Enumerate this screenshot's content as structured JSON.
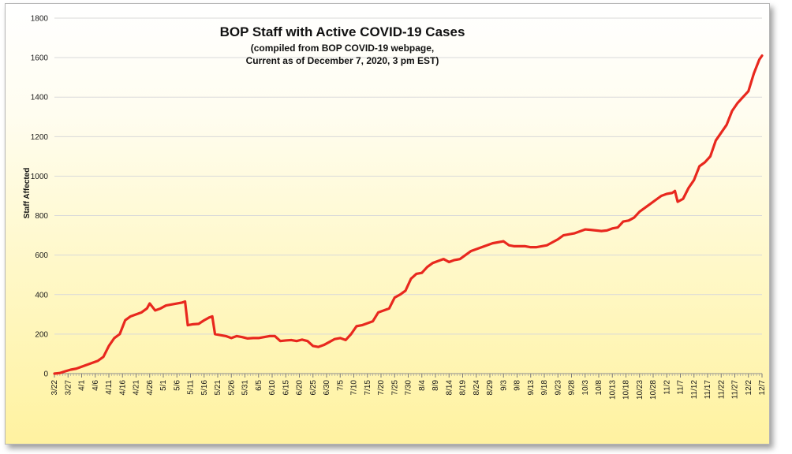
{
  "chart_data": {
    "type": "line",
    "title": "BOP Staff with Active COVID-19 Cases",
    "subtitle_lines": [
      "(compiled from BOP COVID-19 webpage,",
      "Current as of December 7, 2020, 3 pm EST)"
    ],
    "xlabel": "",
    "ylabel": "Staff Affected",
    "ylim": [
      0,
      1800
    ],
    "yticks": [
      0,
      200,
      400,
      600,
      800,
      1000,
      1200,
      1400,
      1600,
      1800
    ],
    "xlim": [
      "3/22",
      "12/7"
    ],
    "xticks": [
      "3/22",
      "3/27",
      "4/1",
      "4/6",
      "4/11",
      "4/16",
      "4/21",
      "4/26",
      "5/1",
      "5/6",
      "5/11",
      "5/16",
      "5/21",
      "5/26",
      "5/31",
      "6/5",
      "6/10",
      "6/15",
      "6/20",
      "6/25",
      "6/30",
      "7/5",
      "7/10",
      "7/15",
      "7/20",
      "7/25",
      "7/30",
      "8/4",
      "8/9",
      "8/14",
      "8/19",
      "8/24",
      "8/29",
      "9/3",
      "9/8",
      "9/13",
      "9/18",
      "9/23",
      "9/28",
      "10/3",
      "10/8",
      "10/13",
      "10/18",
      "10/23",
      "10/28",
      "11/2",
      "11/7",
      "11/12",
      "11/17",
      "11/22",
      "11/27",
      "12/2",
      "12/7"
    ],
    "grid": "horizontal",
    "line_color": "#e8281e",
    "series": [
      {
        "points": [
          [
            "3/22",
            0
          ],
          [
            "3/24",
            3
          ],
          [
            "3/26",
            12
          ],
          [
            "3/28",
            20
          ],
          [
            "3/30",
            25
          ],
          [
            "4/1",
            35
          ],
          [
            "4/3",
            45
          ],
          [
            "4/5",
            55
          ],
          [
            "4/7",
            65
          ],
          [
            "4/9",
            85
          ],
          [
            "4/11",
            140
          ],
          [
            "4/13",
            180
          ],
          [
            "4/15",
            200
          ],
          [
            "4/17",
            270
          ],
          [
            "4/19",
            290
          ],
          [
            "4/21",
            300
          ],
          [
            "4/23",
            310
          ],
          [
            "4/25",
            330
          ],
          [
            "4/26",
            355
          ],
          [
            "4/28",
            320
          ],
          [
            "4/30",
            330
          ],
          [
            "5/2",
            345
          ],
          [
            "5/4",
            350
          ],
          [
            "5/6",
            355
          ],
          [
            "5/8",
            360
          ],
          [
            "5/9",
            365
          ],
          [
            "5/10",
            245
          ],
          [
            "5/12",
            250
          ],
          [
            "5/14",
            252
          ],
          [
            "5/16",
            270
          ],
          [
            "5/18",
            285
          ],
          [
            "5/19",
            290
          ],
          [
            "5/20",
            200
          ],
          [
            "5/22",
            195
          ],
          [
            "5/24",
            190
          ],
          [
            "5/26",
            180
          ],
          [
            "5/28",
            190
          ],
          [
            "5/30",
            185
          ],
          [
            "6/1",
            178
          ],
          [
            "6/3",
            180
          ],
          [
            "6/5",
            180
          ],
          [
            "6/7",
            185
          ],
          [
            "6/9",
            190
          ],
          [
            "6/11",
            190
          ],
          [
            "6/13",
            165
          ],
          [
            "6/15",
            168
          ],
          [
            "6/17",
            170
          ],
          [
            "6/19",
            165
          ],
          [
            "6/21",
            172
          ],
          [
            "6/23",
            165
          ],
          [
            "6/25",
            140
          ],
          [
            "6/27",
            135
          ],
          [
            "6/29",
            145
          ],
          [
            "7/1",
            160
          ],
          [
            "7/3",
            175
          ],
          [
            "7/5",
            180
          ],
          [
            "7/7",
            170
          ],
          [
            "7/9",
            200
          ],
          [
            "7/11",
            240
          ],
          [
            "7/13",
            245
          ],
          [
            "7/15",
            255
          ],
          [
            "7/17",
            265
          ],
          [
            "7/19",
            310
          ],
          [
            "7/21",
            320
          ],
          [
            "7/23",
            330
          ],
          [
            "7/25",
            385
          ],
          [
            "7/27",
            400
          ],
          [
            "7/29",
            420
          ],
          [
            "7/31",
            480
          ],
          [
            "8/2",
            505
          ],
          [
            "8/4",
            510
          ],
          [
            "8/6",
            540
          ],
          [
            "8/8",
            560
          ],
          [
            "8/10",
            570
          ],
          [
            "8/12",
            580
          ],
          [
            "8/14",
            565
          ],
          [
            "8/16",
            575
          ],
          [
            "8/18",
            580
          ],
          [
            "8/20",
            600
          ],
          [
            "8/22",
            620
          ],
          [
            "8/24",
            630
          ],
          [
            "8/26",
            640
          ],
          [
            "8/28",
            650
          ],
          [
            "8/30",
            660
          ],
          [
            "9/1",
            665
          ],
          [
            "9/3",
            670
          ],
          [
            "9/5",
            650
          ],
          [
            "9/7",
            645
          ],
          [
            "9/9",
            645
          ],
          [
            "9/11",
            645
          ],
          [
            "9/13",
            640
          ],
          [
            "9/15",
            640
          ],
          [
            "9/17",
            645
          ],
          [
            "9/19",
            650
          ],
          [
            "9/21",
            665
          ],
          [
            "9/23",
            680
          ],
          [
            "9/25",
            700
          ],
          [
            "9/27",
            705
          ],
          [
            "9/29",
            710
          ],
          [
            "10/1",
            720
          ],
          [
            "10/3",
            730
          ],
          [
            "10/5",
            728
          ],
          [
            "10/7",
            725
          ],
          [
            "10/9",
            722
          ],
          [
            "10/11",
            725
          ],
          [
            "10/13",
            735
          ],
          [
            "10/15",
            740
          ],
          [
            "10/17",
            770
          ],
          [
            "10/19",
            775
          ],
          [
            "10/21",
            790
          ],
          [
            "10/23",
            820
          ],
          [
            "10/25",
            840
          ],
          [
            "10/27",
            860
          ],
          [
            "10/29",
            880
          ],
          [
            "10/31",
            900
          ],
          [
            "11/2",
            910
          ],
          [
            "11/4",
            915
          ],
          [
            "11/5",
            925
          ],
          [
            "11/6",
            870
          ],
          [
            "11/8",
            885
          ],
          [
            "11/10",
            940
          ],
          [
            "11/12",
            980
          ],
          [
            "11/14",
            1050
          ],
          [
            "11/16",
            1070
          ],
          [
            "11/18",
            1100
          ],
          [
            "11/20",
            1180
          ],
          [
            "11/22",
            1220
          ],
          [
            "11/24",
            1260
          ],
          [
            "11/26",
            1330
          ],
          [
            "11/28",
            1370
          ],
          [
            "11/30",
            1400
          ],
          [
            "12/2",
            1430
          ],
          [
            "12/4",
            1520
          ],
          [
            "12/6",
            1590
          ],
          [
            "12/7",
            1610
          ]
        ]
      }
    ]
  }
}
